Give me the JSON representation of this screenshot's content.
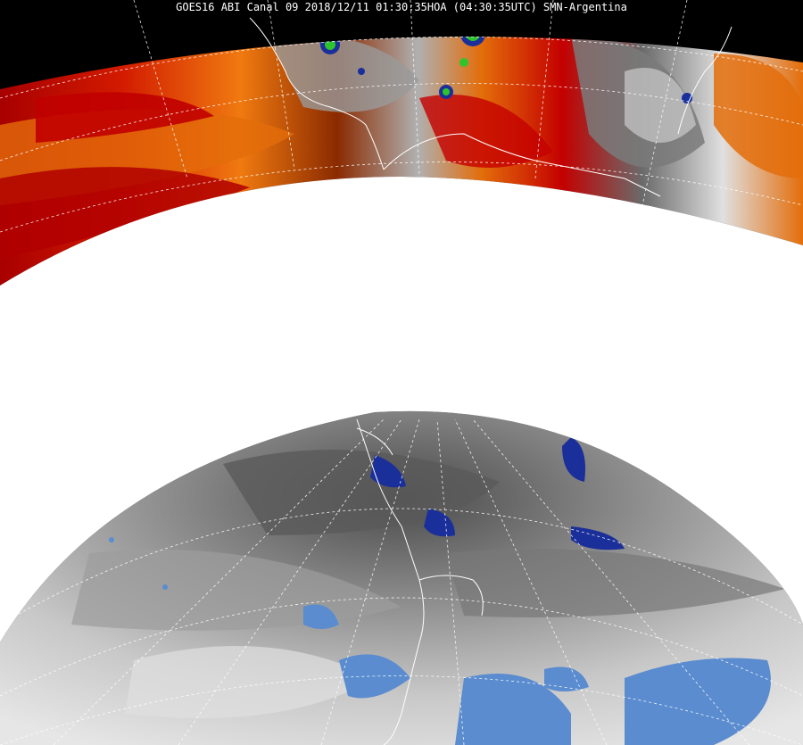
{
  "image_title": "GOES16 ABI Canal 09 2018/12/11 01:30:35HOA (04:30:35UTC) SMN-Argentina",
  "colors": {
    "background": "#000000",
    "mask": "#ffffff",
    "warm_red": "#c40000",
    "warm_orange": "#f07a10",
    "moist_blue": "#1a2f9a",
    "light_blue": "#5a8ccf",
    "convective_green": "#2ec42a",
    "gray_dark": "#555555",
    "gray_light": "#d8d8d8",
    "coastline": "#ffffff",
    "grid": "#ffffff"
  },
  "icons": {
    "coastline": "coastline-outline",
    "grid": "latlon-grid"
  }
}
